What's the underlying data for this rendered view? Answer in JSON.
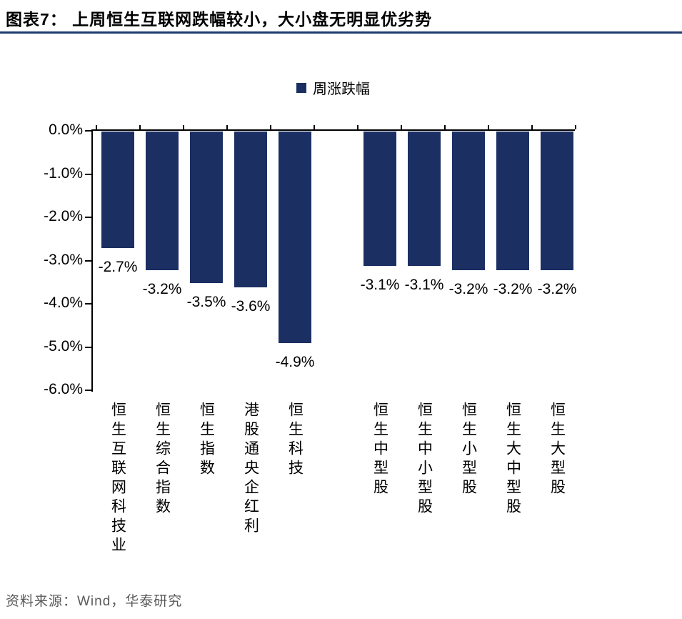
{
  "header": {
    "title": "图表7：  上周恒生互联网跌幅较小，大小盘无明显优劣势"
  },
  "legend": {
    "label": "周涨跌幅",
    "swatch_color": "#1b2f63"
  },
  "footer": {
    "source": "资料来源：Wind，华泰研究"
  },
  "colors": {
    "bar": "#1b2f63",
    "title_rule": "#1f3a6e",
    "axis": "#000000",
    "source_text": "#595959"
  },
  "chart_data": {
    "type": "bar",
    "title": "上周恒生互联网跌幅较小，大小盘无明显优劣势",
    "legend": "周涨跌幅",
    "categories": [
      "恒生互联网科技业",
      "恒生综合指数",
      "恒生指数",
      "港股通央企红利",
      "恒生科技",
      "恒生中型股",
      "恒生中小型股",
      "恒生小型股",
      "恒生大中型股",
      "恒生大型股"
    ],
    "values": [
      -2.7,
      -3.2,
      -3.5,
      -3.6,
      -4.9,
      -3.1,
      -3.1,
      -3.2,
      -3.2,
      -3.2
    ],
    "labels": [
      "-2.7%",
      "-3.2%",
      "-3.5%",
      "-3.6%",
      "-4.9%",
      "-3.1%",
      "-3.1%",
      "-3.2%",
      "-3.2%",
      "-3.2%"
    ],
    "xlabel": "",
    "ylabel": "",
    "ylim": [
      -6.0,
      0.0
    ],
    "yticks": [
      "0.0%",
      "-1.0%",
      "-2.0%",
      "-3.0%",
      "-4.0%",
      "-5.0%",
      "-6.0%"
    ],
    "grid": false,
    "legend_position": "top-center",
    "group_gap_after_index": 4,
    "bar_color": "#1b2f63"
  }
}
